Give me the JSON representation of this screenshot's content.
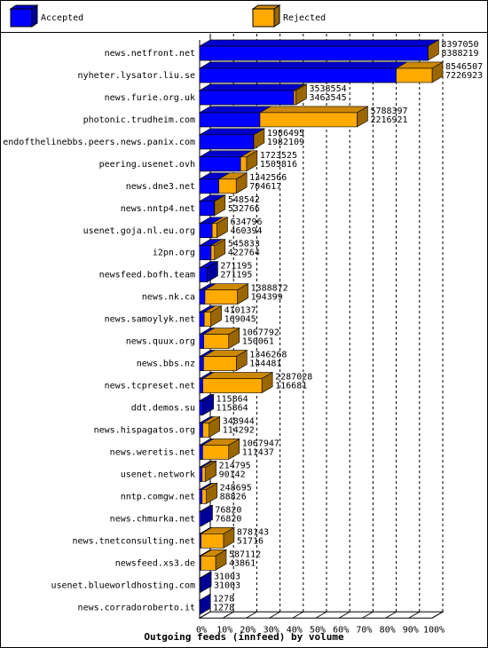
{
  "chart_data": {
    "type": "bar3d-overlay",
    "title": "Outgoing feeds (innfeed) by volume",
    "categories": [
      "news.netfront.net",
      "nyheter.lysator.liu.se",
      "news.furie.org.uk",
      "photonic.trudheim.com",
      "endofthelinebbs.peers.news.panix.com",
      "peering.usenet.ovh",
      "news.dne3.net",
      "news.nntp4.net",
      "usenet.goja.nl.eu.org",
      "i2pn.org",
      "newsfeed.bofh.team",
      "news.nk.ca",
      "news.samoylyk.net",
      "news.quux.org",
      "news.bbs.nz",
      "news.tcpreset.net",
      "ddt.demos.su",
      "news.hispagatos.org",
      "news.weretis.net",
      "usenet.network",
      "nntp.comgw.net",
      "news.chmurka.net",
      "news.tnetconsulting.net",
      "newsfeed.xs3.de",
      "usenet.blueworldhosting.com",
      "news.corradoroberto.it"
    ],
    "series": [
      {
        "name": "Accepted",
        "color": "#0000ff",
        "values": [
          8388219,
          7226923,
          3463545,
          2216921,
          1982109,
          1505816,
          704617,
          532766,
          460394,
          422764,
          271195,
          194399,
          169045,
          150061,
          144481,
          116681,
          115864,
          114292,
          111437,
          90142,
          88826,
          76820,
          51716,
          43861,
          31003,
          1278
        ]
      },
      {
        "name": "Rejected",
        "color": "#ffaa00",
        "values": [
          8397050,
          8546507,
          3538554,
          5788397,
          1986495,
          1723525,
          1342566,
          548542,
          634796,
          545833,
          271195,
          1388872,
          410137,
          1067792,
          1346268,
          2287028,
          115864,
          348944,
          1067947,
          214795,
          248695,
          76820,
          878143,
          587112,
          31003,
          1278
        ]
      }
    ],
    "xlim": [
      0,
      8546507
    ],
    "xticks": [
      {
        "value": 0,
        "label": "0%"
      },
      {
        "value": 854650.7,
        "label": "10%"
      },
      {
        "value": 1709301.4,
        "label": "20%"
      },
      {
        "value": 2563952.1,
        "label": "30%"
      },
      {
        "value": 3418602.8,
        "label": "40%"
      },
      {
        "value": 4273253.5,
        "label": "50%"
      },
      {
        "value": 5127904.2,
        "label": "60%"
      },
      {
        "value": 5982554.9,
        "label": "70%"
      },
      {
        "value": 6837205.6,
        "label": "80%"
      },
      {
        "value": 7691856.3,
        "label": "90%"
      },
      {
        "value": 8546507,
        "label": "100%"
      }
    ],
    "grid": true
  }
}
